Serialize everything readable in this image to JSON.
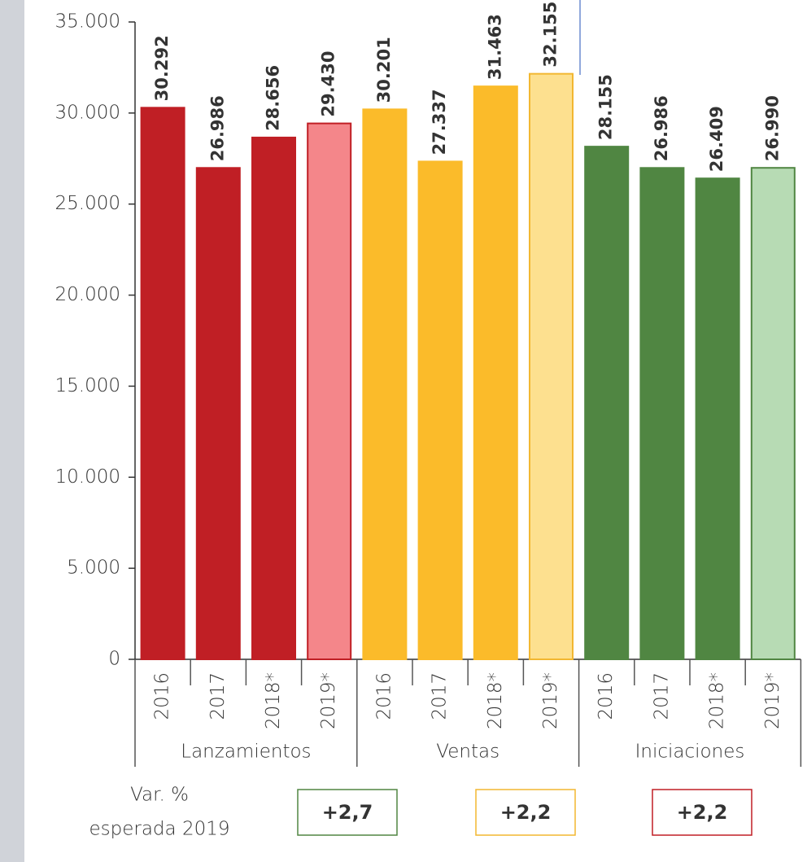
{
  "chart_data": {
    "type": "bar",
    "categories": [
      "2016",
      "2017",
      "2018*",
      "2019*",
      "2016",
      "2017",
      "2018*",
      "2019*",
      "2016",
      "2017",
      "2018*",
      "2019*"
    ],
    "groups": [
      "Lanzamientos",
      "Ventas",
      "Iniciaciones"
    ],
    "values": [
      30292,
      26986,
      28656,
      29430,
      30201,
      27337,
      31463,
      32155,
      28155,
      26986,
      26409,
      26990
    ],
    "value_labels": [
      "30.292",
      "26.986",
      "28.656",
      "29.430",
      "30.201",
      "27.337",
      "31.463",
      "32.155",
      "28.155",
      "26.986",
      "26.409",
      "26.990"
    ],
    "colors": [
      "#c01f25",
      "#c01f25",
      "#c01f25",
      "#f4868a",
      "#fbbb2a",
      "#fbbb2a",
      "#fbbb2a",
      "#fde08f",
      "#508642",
      "#508642",
      "#508642",
      "#b7dbb4"
    ],
    "edge_colors": [
      "#c01f25",
      "#c01f25",
      "#c01f25",
      "#c01f25",
      "#fbbb2a",
      "#fbbb2a",
      "#fbbb2a",
      "#f2b731",
      "#508642",
      "#508642",
      "#508642",
      "#508642"
    ],
    "label_colors": [
      "#c01f25",
      "#c9a227",
      "#508642"
    ],
    "ylim": [
      0,
      35000
    ],
    "yticks": [
      0,
      {
        "value": 5000,
        "label": "5.000"
      },
      {
        "value": 10000,
        "label": "10.000"
      },
      {
        "value": 15000,
        "label": "15.000"
      },
      {
        "value": 20000,
        "label": "20.000"
      },
      {
        "value": 25000,
        "label": "25.000"
      },
      {
        "value": 30000,
        "label": "30.000"
      },
      {
        "value": 35000,
        "label": "35.000"
      }
    ],
    "variation": {
      "label": [
        "Var. %",
        "esperada 2019"
      ],
      "values": [
        2.7,
        2.2,
        2.2
      ],
      "value_labels": [
        "+2,7",
        "+2,2",
        "+2,2"
      ],
      "colors": [
        "#508642",
        "#f2b731",
        "#c01f25"
      ]
    }
  }
}
